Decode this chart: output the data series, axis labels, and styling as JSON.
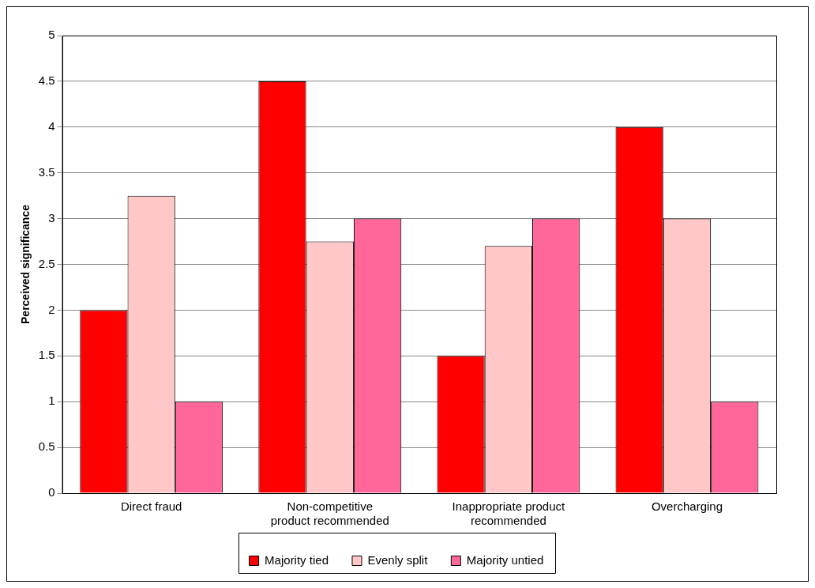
{
  "chart_data": {
    "type": "bar",
    "ylabel": "Perceived significance",
    "categories": [
      "Direct fraud",
      "Non-competitive product recommended",
      "Inappropriate product recommended",
      "Overcharging"
    ],
    "series": [
      {
        "name": "Majority tied",
        "color": "#ff0000",
        "values": [
          2,
          4.5,
          1.5,
          4
        ]
      },
      {
        "name": "Evenly split",
        "color": "#ffc7c7",
        "values": [
          3.25,
          2.75,
          2.7,
          3
        ]
      },
      {
        "name": "Majority untied",
        "color": "#ff6699",
        "values": [
          1,
          3,
          3,
          1
        ]
      }
    ],
    "ylim": [
      0,
      5
    ],
    "yticks": [
      0,
      0.5,
      1,
      1.5,
      2,
      2.5,
      3,
      3.5,
      4,
      4.5,
      5
    ],
    "grid": "y",
    "legend": "bottom"
  }
}
